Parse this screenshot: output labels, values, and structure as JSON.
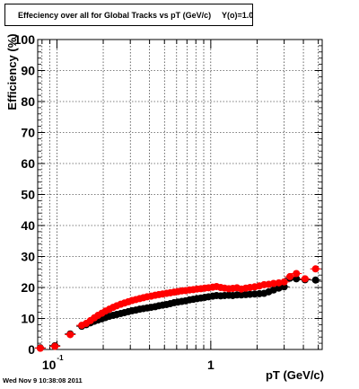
{
  "chart_data": {
    "type": "scatter",
    "title": "Effeciency over all for Global Tracks vs pT (GeV/c)",
    "title_overlay": "Y(o)=1.0",
    "xlabel": "pT (GeV/c)",
    "ylabel": "Efficiency (%)",
    "xscale": "log",
    "xlim": [
      0.075,
      5.3
    ],
    "ylim": [
      0,
      100
    ],
    "grid": true,
    "y_ticks": [
      "0",
      "10",
      "20",
      "30",
      "40",
      "50",
      "60",
      "70",
      "80",
      "90",
      "100"
    ],
    "x_tick_labels": [
      {
        "value": 0.1,
        "base": "10",
        "exp": "-1"
      },
      {
        "value": 1,
        "text": "1"
      }
    ],
    "series": [
      {
        "color": "#000000",
        "points": [
          [
            0.078,
            0.5
          ],
          [
            0.097,
            1.2
          ],
          [
            0.122,
            5.0
          ],
          [
            0.145,
            7.5
          ],
          [
            0.155,
            8.0
          ],
          [
            0.165,
            8.6
          ],
          [
            0.175,
            9.1
          ],
          [
            0.185,
            9.5
          ],
          [
            0.196,
            9.9
          ],
          [
            0.207,
            10.3
          ],
          [
            0.219,
            10.7
          ],
          [
            0.232,
            11.0
          ],
          [
            0.245,
            11.3
          ],
          [
            0.26,
            11.6
          ],
          [
            0.275,
            11.9
          ],
          [
            0.291,
            12.2
          ],
          [
            0.308,
            12.5
          ],
          [
            0.326,
            12.7
          ],
          [
            0.345,
            13.0
          ],
          [
            0.365,
            13.2
          ],
          [
            0.386,
            13.4
          ],
          [
            0.41,
            13.6
          ],
          [
            0.435,
            13.8
          ],
          [
            0.46,
            14.1
          ],
          [
            0.487,
            14.3
          ],
          [
            0.516,
            14.5
          ],
          [
            0.546,
            14.8
          ],
          [
            0.578,
            15.1
          ],
          [
            0.612,
            15.3
          ],
          [
            0.648,
            15.5
          ],
          [
            0.686,
            15.7
          ],
          [
            0.727,
            16.0
          ],
          [
            0.77,
            16.2
          ],
          [
            0.815,
            16.4
          ],
          [
            0.863,
            16.6
          ],
          [
            0.914,
            16.8
          ],
          [
            0.968,
            17.0
          ],
          [
            1.03,
            17.2
          ],
          [
            1.09,
            17.4
          ],
          [
            1.16,
            17.3
          ],
          [
            1.23,
            17.4
          ],
          [
            1.31,
            17.5
          ],
          [
            1.39,
            17.4
          ],
          [
            1.48,
            17.6
          ],
          [
            1.58,
            17.6
          ],
          [
            1.69,
            17.7
          ],
          [
            1.8,
            17.8
          ],
          [
            1.93,
            17.9
          ],
          [
            2.07,
            18.0
          ],
          [
            2.22,
            18.1
          ],
          [
            2.38,
            18.6
          ],
          [
            2.56,
            19.2
          ],
          [
            2.77,
            19.8
          ],
          [
            3.0,
            20.2
          ],
          [
            3.27,
            23.0
          ],
          [
            3.6,
            22.8
          ],
          [
            4.1,
            22.5
          ],
          [
            4.8,
            22.4
          ]
        ]
      },
      {
        "color": "#ff0000",
        "points": [
          [
            0.078,
            0.4
          ],
          [
            0.097,
            1.0
          ],
          [
            0.122,
            4.8
          ],
          [
            0.145,
            7.8
          ],
          [
            0.155,
            8.4
          ],
          [
            0.165,
            9.3
          ],
          [
            0.175,
            10.2
          ],
          [
            0.185,
            11.0
          ],
          [
            0.196,
            11.7
          ],
          [
            0.207,
            12.4
          ],
          [
            0.219,
            13.0
          ],
          [
            0.232,
            13.6
          ],
          [
            0.245,
            14.1
          ],
          [
            0.26,
            14.6
          ],
          [
            0.275,
            15.0
          ],
          [
            0.291,
            15.4
          ],
          [
            0.308,
            15.8
          ],
          [
            0.326,
            16.1
          ],
          [
            0.345,
            16.4
          ],
          [
            0.365,
            16.7
          ],
          [
            0.386,
            17.0
          ],
          [
            0.41,
            17.2
          ],
          [
            0.435,
            17.5
          ],
          [
            0.46,
            17.7
          ],
          [
            0.487,
            17.9
          ],
          [
            0.516,
            18.1
          ],
          [
            0.546,
            18.3
          ],
          [
            0.578,
            18.5
          ],
          [
            0.612,
            18.7
          ],
          [
            0.648,
            18.9
          ],
          [
            0.686,
            19.0
          ],
          [
            0.727,
            19.2
          ],
          [
            0.77,
            19.3
          ],
          [
            0.815,
            19.5
          ],
          [
            0.863,
            19.6
          ],
          [
            0.914,
            19.8
          ],
          [
            0.968,
            19.9
          ],
          [
            1.03,
            20.1
          ],
          [
            1.09,
            20.3
          ],
          [
            1.16,
            20.0
          ],
          [
            1.23,
            19.8
          ],
          [
            1.31,
            19.6
          ],
          [
            1.39,
            19.7
          ],
          [
            1.48,
            19.9
          ],
          [
            1.58,
            19.5
          ],
          [
            1.69,
            19.8
          ],
          [
            1.8,
            20.0
          ],
          [
            1.93,
            20.2
          ],
          [
            2.07,
            20.5
          ],
          [
            2.22,
            20.9
          ],
          [
            2.38,
            21.0
          ],
          [
            2.56,
            21.3
          ],
          [
            2.77,
            21.5
          ],
          [
            3.0,
            21.8
          ],
          [
            3.27,
            23.5
          ],
          [
            3.6,
            24.5
          ],
          [
            4.1,
            22.8
          ],
          [
            4.8,
            26.0
          ]
        ]
      }
    ]
  }
}
